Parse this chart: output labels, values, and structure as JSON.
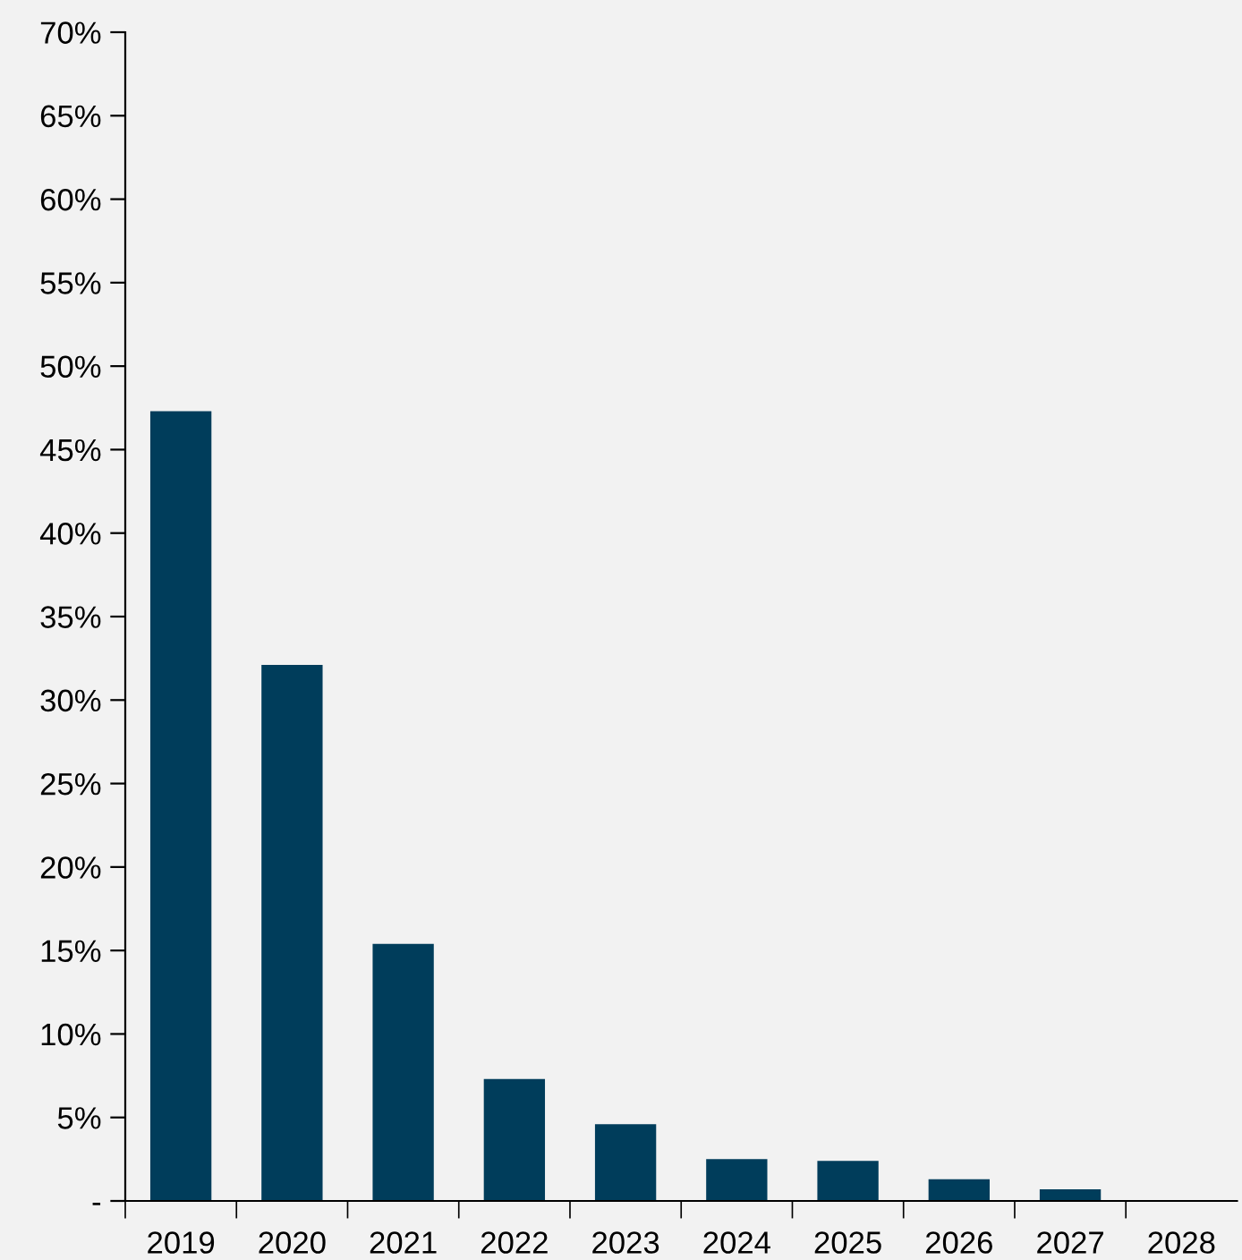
{
  "chart_data": {
    "type": "bar",
    "categories": [
      "2019",
      "2020",
      "2021",
      "2022",
      "2023",
      "2024",
      "2025",
      "2026",
      "2027",
      "2028"
    ],
    "values": [
      47.3,
      32.1,
      15.4,
      7.3,
      4.6,
      2.5,
      2.4,
      1.3,
      0.7,
      0
    ],
    "color": "#003d5b",
    "ylim": [
      0,
      70
    ],
    "yticks": [
      {
        "value": 0,
        "label": "-"
      },
      {
        "value": 5,
        "label": "5%"
      },
      {
        "value": 10,
        "label": "10%"
      },
      {
        "value": 15,
        "label": "15%"
      },
      {
        "value": 20,
        "label": "20%"
      },
      {
        "value": 25,
        "label": "25%"
      },
      {
        "value": 30,
        "label": "30%"
      },
      {
        "value": 35,
        "label": "35%"
      },
      {
        "value": 40,
        "label": "40%"
      },
      {
        "value": 45,
        "label": "45%"
      },
      {
        "value": 50,
        "label": "50%"
      },
      {
        "value": 55,
        "label": "55%"
      },
      {
        "value": 60,
        "label": "60%"
      },
      {
        "value": 65,
        "label": "65%"
      },
      {
        "value": 70,
        "label": "70%"
      }
    ],
    "grid": false
  }
}
